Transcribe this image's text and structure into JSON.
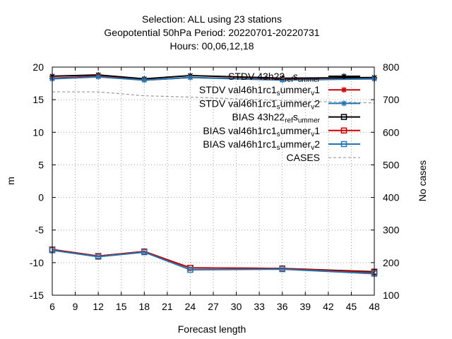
{
  "chart_data": {
    "type": "line",
    "title_lines": [
      "Selection: ALL using    23 stations",
      "Geopotential 50hPa   Period: 20220701-20220731",
      "Hours:  00,06,12,18"
    ],
    "xlabel": "Forecast length",
    "ylabel": "m",
    "y2label": "No cases",
    "xlim": [
      6,
      48
    ],
    "ylim": [
      -15,
      20
    ],
    "y2lim": [
      100,
      800
    ],
    "xticks": [
      6,
      9,
      12,
      15,
      18,
      21,
      24,
      27,
      30,
      33,
      36,
      39,
      42,
      45,
      48
    ],
    "yticks": [
      -15,
      -10,
      -5,
      0,
      5,
      10,
      15,
      20
    ],
    "y2ticks": [
      100,
      200,
      300,
      400,
      500,
      600,
      700,
      800
    ],
    "grid": true,
    "legend_position": "top-right",
    "series": [
      {
        "name": "STDV 43h22_ref_summer",
        "legend_base": "STDV 43h22",
        "legend_sub": "ref",
        "legend_sep": "s",
        "legend_sub2": "ummer",
        "legend_rest": "",
        "color": "#000000",
        "marker": "star",
        "dash": false,
        "axis": "y",
        "x": [
          6,
          12,
          18,
          24,
          36,
          48
        ],
        "values": [
          18.6,
          18.8,
          18.2,
          18.7,
          18.3,
          18.4
        ]
      },
      {
        "name": "STDV val46h1rc1_summer_v1",
        "legend_base": "STDV val46h1rc1",
        "legend_sub": "s",
        "legend_sep": "ummer",
        "legend_sub2": "v",
        "legend_rest": "1",
        "color": "#cc0000",
        "marker": "star",
        "dash": false,
        "axis": "y",
        "x": [
          6,
          12,
          18,
          24,
          36,
          48
        ],
        "values": [
          18.3,
          18.6,
          18.0,
          18.4,
          18.1,
          18.2
        ]
      },
      {
        "name": "STDV val46h1rc1_summer_v2",
        "legend_base": "STDV val46h1rc1",
        "legend_sub": "s",
        "legend_sep": "ummer",
        "legend_sub2": "v",
        "legend_rest": "2",
        "color": "#1f77b4",
        "marker": "star",
        "dash": false,
        "axis": "y",
        "x": [
          6,
          12,
          18,
          24,
          36,
          48
        ],
        "values": [
          18.2,
          18.5,
          18.0,
          18.4,
          18.0,
          18.2
        ]
      },
      {
        "name": "BIAS 43h22_ref_summer",
        "legend_base": "BIAS 43h22",
        "legend_sub": "ref",
        "legend_sep": "s",
        "legend_sub2": "ummer",
        "legend_rest": "",
        "color": "#000000",
        "marker": "square",
        "dash": false,
        "axis": "y",
        "x": [
          6,
          12,
          18,
          24,
          36,
          48
        ],
        "values": [
          -8.0,
          -9.0,
          -8.3,
          -10.8,
          -10.9,
          -11.4
        ]
      },
      {
        "name": "BIAS val46h1rc1_summer_v1",
        "legend_base": "BIAS val46h1rc1",
        "legend_sub": "s",
        "legend_sep": "ummer",
        "legend_sub2": "v",
        "legend_rest": "1",
        "color": "#cc0000",
        "marker": "square",
        "dash": false,
        "axis": "y",
        "x": [
          6,
          12,
          18,
          24,
          36,
          48
        ],
        "values": [
          -8.0,
          -9.0,
          -8.3,
          -10.8,
          -10.9,
          -11.5
        ]
      },
      {
        "name": "BIAS val46h1rc1_summer_v2",
        "legend_base": "BIAS val46h1rc1",
        "legend_sub": "s",
        "legend_sep": "ummer",
        "legend_sub2": "v",
        "legend_rest": "2",
        "color": "#1f77b4",
        "marker": "square",
        "dash": false,
        "axis": "y",
        "x": [
          6,
          12,
          18,
          24,
          36,
          48
        ],
        "values": [
          -8.1,
          -9.1,
          -8.4,
          -11.1,
          -11.0,
          -11.7
        ]
      },
      {
        "name": "CASES",
        "legend_base": "CASES",
        "legend_sub": "",
        "legend_sep": "",
        "legend_sub2": "",
        "legend_rest": "",
        "color": "#999999",
        "marker": "none",
        "dash": true,
        "axis": "y2",
        "x": [
          6,
          12,
          18,
          24,
          36,
          48
        ],
        "values": [
          724,
          724,
          712,
          708,
          697,
          690
        ]
      }
    ]
  }
}
